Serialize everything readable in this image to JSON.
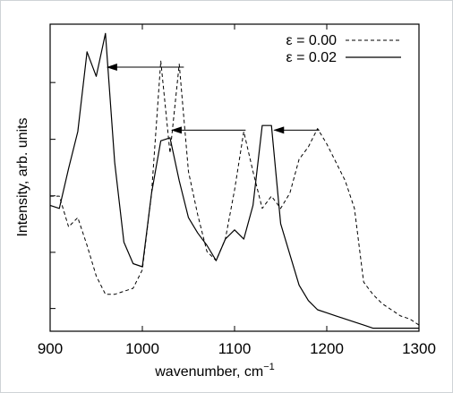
{
  "chart_data": {
    "type": "line",
    "title": "",
    "xlabel": "wavenumber, cm",
    "xlabel_superscript": "−1",
    "ylabel": "Intensity, arb. units",
    "xlim": [
      900,
      1300
    ],
    "ylim": [
      0,
      1
    ],
    "x_ticks": [
      900,
      1000,
      1100,
      1200,
      1300
    ],
    "x_tick_labels": [
      "900",
      "1000",
      "1100",
      "1200",
      "1300"
    ],
    "y_ticks": [
      0.074,
      0.257,
      0.441,
      0.625,
      0.81
    ],
    "y_tick_labels_shown": false,
    "grid": false,
    "legend_position": "top-right",
    "series": [
      {
        "name": "ε = 0.00",
        "style": "dashed",
        "color": "#000000",
        "x": [
          900,
          910,
          920,
          930,
          940,
          950,
          960,
          970,
          980,
          990,
          1000,
          1010,
          1020,
          1030,
          1040,
          1050,
          1060,
          1070,
          1080,
          1090,
          1100,
          1110,
          1120,
          1130,
          1140,
          1150,
          1160,
          1170,
          1180,
          1190,
          1200,
          1210,
          1220,
          1230,
          1240,
          1250,
          1260,
          1270,
          1280,
          1290,
          1300
        ],
        "y": [
          0.44,
          0.44,
          0.34,
          0.37,
          0.28,
          0.18,
          0.12,
          0.12,
          0.13,
          0.14,
          0.2,
          0.45,
          0.88,
          0.58,
          0.87,
          0.52,
          0.38,
          0.26,
          0.23,
          0.3,
          0.46,
          0.65,
          0.52,
          0.4,
          0.44,
          0.4,
          0.45,
          0.56,
          0.6,
          0.66,
          0.61,
          0.55,
          0.49,
          0.4,
          0.16,
          0.12,
          0.09,
          0.07,
          0.05,
          0.04,
          0.02
        ]
      },
      {
        "name": "ε = 0.02",
        "style": "solid",
        "color": "#000000",
        "x": [
          900,
          910,
          920,
          930,
          940,
          950,
          960,
          970,
          980,
          990,
          1000,
          1010,
          1020,
          1030,
          1040,
          1050,
          1060,
          1070,
          1080,
          1090,
          1100,
          1110,
          1120,
          1130,
          1140,
          1150,
          1160,
          1170,
          1180,
          1190,
          1200,
          1210,
          1220,
          1230,
          1240,
          1250,
          1260,
          1270,
          1280,
          1290,
          1300
        ],
        "y": [
          0.41,
          0.4,
          0.53,
          0.65,
          0.91,
          0.83,
          0.97,
          0.55,
          0.29,
          0.22,
          0.21,
          0.45,
          0.62,
          0.63,
          0.49,
          0.37,
          0.32,
          0.28,
          0.23,
          0.3,
          0.33,
          0.3,
          0.41,
          0.67,
          0.67,
          0.35,
          0.25,
          0.15,
          0.1,
          0.07,
          0.06,
          0.05,
          0.04,
          0.03,
          0.02,
          0.01,
          0.01,
          0.01,
          0.01,
          0.01,
          0.01
        ]
      }
    ],
    "annotations": [
      {
        "type": "arrow",
        "from": [
          1045,
          0.86
        ],
        "to": [
          962,
          0.86
        ]
      },
      {
        "type": "arrow",
        "from": [
          1112,
          0.655
        ],
        "to": [
          1032,
          0.655
        ]
      },
      {
        "type": "arrow",
        "from": [
          1192,
          0.655
        ],
        "to": [
          1143,
          0.655
        ]
      }
    ]
  }
}
